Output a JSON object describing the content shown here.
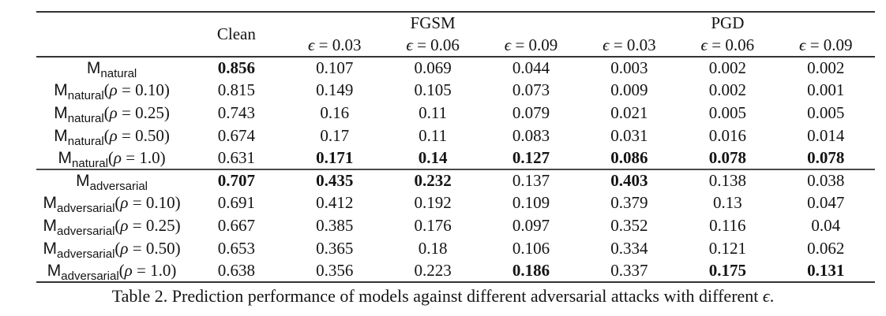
{
  "table": {
    "caption": "Table 2. Prediction performance of models against different adversarial attacks with different ϵ.",
    "header": {
      "clean_label": "Clean",
      "attack_groups": [
        {
          "label": "FGSM",
          "epsilons": [
            "ϵ = 0.03",
            "ϵ = 0.06",
            "ϵ = 0.09"
          ]
        },
        {
          "label": "PGD",
          "epsilons": [
            "ϵ = 0.03",
            "ϵ = 0.06",
            "ϵ = 0.09"
          ]
        }
      ]
    },
    "columns": [
      "Clean",
      "FGSM ϵ = 0.03",
      "FGSM ϵ = 0.06",
      "FGSM ϵ = 0.09",
      "PGD ϵ = 0.03",
      "PGD ϵ = 0.06",
      "PGD ϵ = 0.09"
    ],
    "rows": [
      {
        "label_base": "M",
        "label_sub": "natural",
        "label_param": "",
        "section_start": false,
        "values": [
          "0.856",
          "0.107",
          "0.069",
          "0.044",
          "0.003",
          "0.002",
          "0.002"
        ],
        "bold": [
          true,
          false,
          false,
          false,
          false,
          false,
          false
        ]
      },
      {
        "label_base": "M",
        "label_sub": "natural",
        "label_param": "(ρ = 0.10)",
        "section_start": false,
        "values": [
          "0.815",
          "0.149",
          "0.105",
          "0.073",
          "0.009",
          "0.002",
          "0.001"
        ],
        "bold": [
          false,
          false,
          false,
          false,
          false,
          false,
          false
        ]
      },
      {
        "label_base": "M",
        "label_sub": "natural",
        "label_param": "(ρ = 0.25)",
        "section_start": false,
        "values": [
          "0.743",
          "0.16",
          "0.11",
          "0.079",
          "0.021",
          "0.005",
          "0.005"
        ],
        "bold": [
          false,
          false,
          false,
          false,
          false,
          false,
          false
        ]
      },
      {
        "label_base": "M",
        "label_sub": "natural",
        "label_param": "(ρ = 0.50)",
        "section_start": false,
        "values": [
          "0.674",
          "0.17",
          "0.11",
          "0.083",
          "0.031",
          "0.016",
          "0.014"
        ],
        "bold": [
          false,
          false,
          false,
          false,
          false,
          false,
          false
        ]
      },
      {
        "label_base": "M",
        "label_sub": "natural",
        "label_param": "(ρ = 1.0)",
        "section_start": false,
        "values": [
          "0.631",
          "0.171",
          "0.14",
          "0.127",
          "0.086",
          "0.078",
          "0.078"
        ],
        "bold": [
          false,
          true,
          true,
          true,
          true,
          true,
          true
        ]
      },
      {
        "label_base": "M",
        "label_sub": "adversarial",
        "label_param": "",
        "section_start": true,
        "values": [
          "0.707",
          "0.435",
          "0.232",
          "0.137",
          "0.403",
          "0.138",
          "0.038"
        ],
        "bold": [
          true,
          true,
          true,
          false,
          true,
          false,
          false
        ]
      },
      {
        "label_base": "M",
        "label_sub": "adversarial",
        "label_param": "(ρ = 0.10)",
        "section_start": false,
        "values": [
          "0.691",
          "0.412",
          "0.192",
          "0.109",
          "0.379",
          "0.13",
          "0.047"
        ],
        "bold": [
          false,
          false,
          false,
          false,
          false,
          false,
          false
        ]
      },
      {
        "label_base": "M",
        "label_sub": "adversarial",
        "label_param": "(ρ = 0.25)",
        "section_start": false,
        "values": [
          "0.667",
          "0.385",
          "0.176",
          "0.097",
          "0.352",
          "0.116",
          "0.04"
        ],
        "bold": [
          false,
          false,
          false,
          false,
          false,
          false,
          false
        ]
      },
      {
        "label_base": "M",
        "label_sub": "adversarial",
        "label_param": "(ρ = 0.50)",
        "section_start": false,
        "values": [
          "0.653",
          "0.365",
          "0.18",
          "0.106",
          "0.334",
          "0.121",
          "0.062"
        ],
        "bold": [
          false,
          false,
          false,
          false,
          false,
          false,
          false
        ]
      },
      {
        "label_base": "M",
        "label_sub": "adversarial",
        "label_param": "(ρ = 1.0)",
        "section_start": false,
        "values": [
          "0.638",
          "0.356",
          "0.223",
          "0.186",
          "0.337",
          "0.175",
          "0.131"
        ],
        "bold": [
          false,
          false,
          false,
          true,
          false,
          true,
          true
        ]
      }
    ]
  }
}
